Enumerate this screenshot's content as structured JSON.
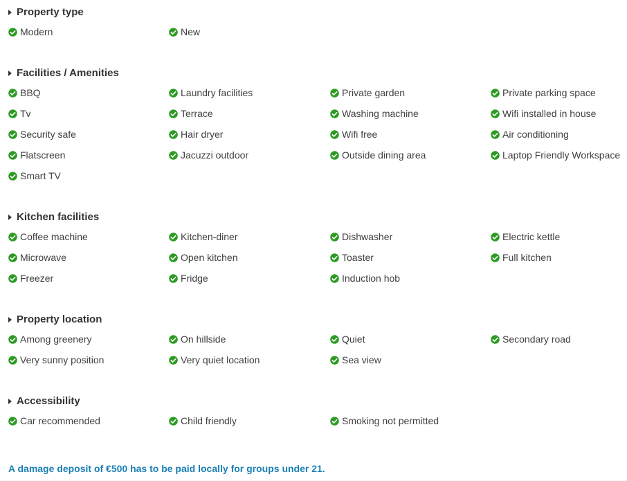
{
  "colors": {
    "check_green": "#2d9b23",
    "heading": "#333333",
    "item_text": "#3f3f3f",
    "note_blue": "#1b7fb4"
  },
  "icons": {
    "item_bullet": "check-circle-icon",
    "section_marker": "caret-right-icon"
  },
  "sections": [
    {
      "title": "Property type",
      "items": [
        "Modern",
        "New"
      ]
    },
    {
      "title": "Facilities / Amenities",
      "items": [
        "BBQ",
        "Laundry facilities",
        "Private garden",
        "Private parking space",
        "Tv",
        "Terrace",
        "Washing machine",
        "Wifi installed in house",
        "Security safe",
        "Hair dryer",
        "Wifi free",
        "Air conditioning",
        "Flatscreen",
        "Jacuzzi outdoor",
        "Outside dining area",
        "Laptop Friendly Workspace",
        "Smart TV"
      ]
    },
    {
      "title": "Kitchen facilities",
      "items": [
        "Coffee machine",
        "Kitchen-diner",
        "Dishwasher",
        "Electric kettle",
        "Microwave",
        "Open kitchen",
        "Toaster",
        "Full kitchen",
        "Freezer",
        "Fridge",
        "Induction hob"
      ]
    },
    {
      "title": "Property location",
      "items": [
        "Among greenery",
        "On hillside",
        "Quiet",
        "Secondary road",
        "Very sunny position",
        "Very quiet location",
        "Sea view"
      ]
    },
    {
      "title": "Accessibility",
      "items": [
        "Car recommended",
        "Child friendly",
        "Smoking not permitted"
      ]
    }
  ],
  "note": "A damage deposit of €500 has to be paid locally for groups under 21."
}
